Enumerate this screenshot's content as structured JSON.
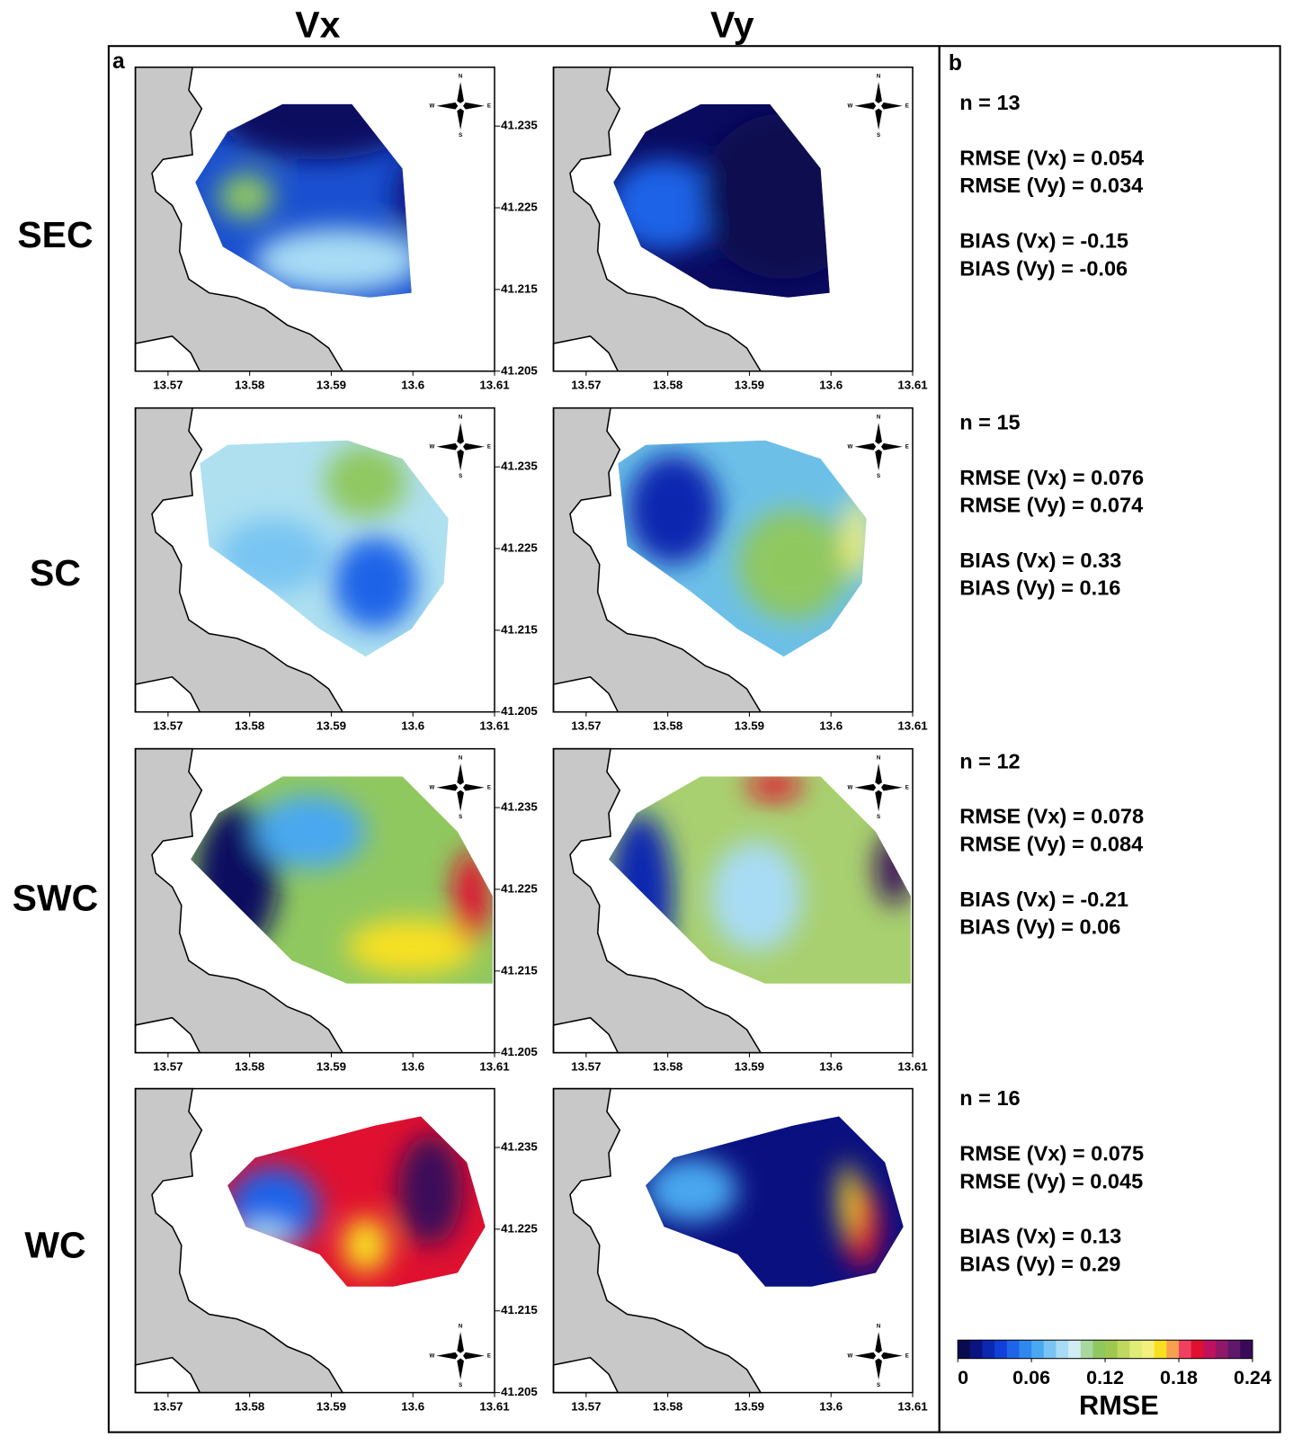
{
  "columns": [
    "Vx",
    "Vy"
  ],
  "panel_labels": [
    "a",
    "b"
  ],
  "rows": [
    {
      "label": "SEC",
      "stats": [
        "n = 13",
        "RMSE (Vx) = 0.054",
        "RMSE (Vy) = 0.034",
        "BIAS (Vx) = -0.15",
        "BIAS (Vy) = -0.06"
      ]
    },
    {
      "label": "SC",
      "stats": [
        "n = 15",
        "RMSE (Vx) = 0.076",
        "RMSE (Vy) = 0.074",
        "BIAS (Vx) = 0.33",
        "BIAS (Vy) = 0.16"
      ]
    },
    {
      "label": "SWC",
      "stats": [
        "n = 12",
        "RMSE (Vx) = 0.078",
        "RMSE (Vy) = 0.084",
        "BIAS (Vx) = -0.21",
        "BIAS (Vy) = 0.06"
      ]
    },
    {
      "label": "WC",
      "stats": [
        "n = 16",
        "RMSE (Vx) = 0.075",
        "RMSE (Vy) = 0.045",
        "BIAS (Vx) = 0.13",
        "BIAS (Vy) = 0.29"
      ]
    }
  ],
  "xlim": [
    13.566,
    13.61
  ],
  "xticks": [
    13.57,
    13.58,
    13.59,
    13.6,
    13.61
  ],
  "ylim": [
    41.205,
    41.2422
  ],
  "yticks": [
    41.205,
    41.215,
    41.225,
    41.235
  ],
  "compass": [
    "N",
    "E",
    "S",
    "W"
  ],
  "colorbar": {
    "label": "RMSE",
    "lim": [
      0,
      0.24
    ],
    "ticks": [
      0,
      0.06,
      0.12,
      0.18,
      0.24
    ],
    "colors": [
      "#0a0a50",
      "#0a1480",
      "#0a28b0",
      "#1040d8",
      "#1e64e8",
      "#2e88ee",
      "#4aa8f0",
      "#78c4f2",
      "#a8dcf4",
      "#d0ecf4",
      "#a8d8a0",
      "#90c860",
      "#a0c850",
      "#c0d860",
      "#e0ec78",
      "#f4f080",
      "#f8e020",
      "#f8a050",
      "#f04060",
      "#e01030",
      "#c01060",
      "#901868",
      "#60186a",
      "#3a0a5a"
    ]
  }
}
